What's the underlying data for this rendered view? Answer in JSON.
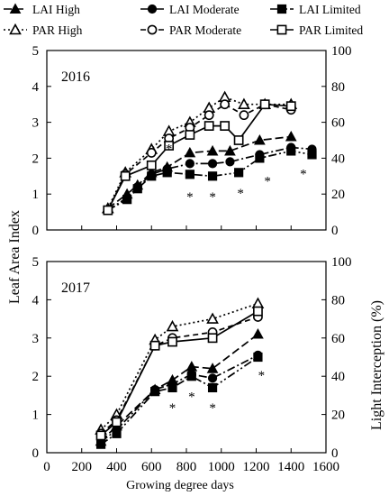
{
  "chart_data": {
    "type": "line",
    "xlabel": "Growing degree days",
    "ylabel_left": "Leaf Area Index",
    "ylabel_right": "Light Interception (%)",
    "xlim": [
      0,
      1600
    ],
    "x_ticks": [
      "0",
      "200",
      "400",
      "600",
      "800",
      "1000",
      "1200",
      "1400",
      "1600"
    ],
    "ylim_left": [
      0,
      5
    ],
    "y_ticks_left": [
      "0",
      "1",
      "2",
      "3",
      "4",
      "5"
    ],
    "ylim_right": [
      0,
      100
    ],
    "y_ticks_right": [
      "0",
      "20",
      "40",
      "60",
      "80",
      "100"
    ],
    "legend": [
      {
        "name": "LAI High",
        "marker": "triangle",
        "filled": true,
        "dash": "long"
      },
      {
        "name": "LAI Moderate",
        "marker": "circle",
        "filled": true,
        "dash": "dashdot"
      },
      {
        "name": "LAI Limited",
        "marker": "square",
        "filled": true,
        "dash": "dashdotdot"
      },
      {
        "name": "PAR High",
        "marker": "triangle",
        "filled": false,
        "dash": "dot"
      },
      {
        "name": "PAR Moderate",
        "marker": "circle",
        "filled": false,
        "dash": "dash"
      },
      {
        "name": "PAR Limited",
        "marker": "square",
        "filled": false,
        "dash": "solid"
      }
    ],
    "panels": [
      {
        "year": "2016",
        "series": [
          {
            "name": "LAI High",
            "axis": "left",
            "x": [
              350,
              460,
              520,
              600,
              690,
              820,
              950,
              1050,
              1220,
              1400
            ],
            "y": [
              0.6,
              1.0,
              1.25,
              1.6,
              1.75,
              2.15,
              2.2,
              2.2,
              2.5,
              2.6
            ]
          },
          {
            "name": "LAI Moderate",
            "axis": "left",
            "x": [
              350,
              460,
              520,
              600,
              690,
              820,
              950,
              1050,
              1220,
              1400,
              1520
            ],
            "y": [
              0.55,
              0.9,
              1.2,
              1.55,
              1.7,
              1.85,
              1.85,
              1.9,
              2.1,
              2.3,
              2.25
            ]
          },
          {
            "name": "LAI Limited",
            "axis": "left",
            "x": [
              350,
              460,
              520,
              600,
              690,
              820,
              950,
              1100,
              1220,
              1400,
              1520
            ],
            "y": [
              0.55,
              0.85,
              1.15,
              1.5,
              1.6,
              1.55,
              1.5,
              1.6,
              2.0,
              2.2,
              2.1
            ]
          },
          {
            "name": "PAR High",
            "axis": "right",
            "x": [
              350,
              450,
              600,
              700,
              820,
              930,
              1020,
              1130,
              1250,
              1400
            ],
            "y": [
              12,
              32,
              45,
              55,
              60,
              68,
              74,
              70,
              70,
              70
            ]
          },
          {
            "name": "PAR Moderate",
            "axis": "right",
            "x": [
              350,
              450,
              600,
              700,
              820,
              930,
              1020,
              1130,
              1250,
              1400
            ],
            "y": [
              11,
              31,
              43,
              51,
              57,
              64,
              70,
              64,
              70,
              67
            ]
          },
          {
            "name": "PAR Limited",
            "axis": "right",
            "x": [
              350,
              450,
              600,
              700,
              820,
              930,
              1020,
              1100,
              1250,
              1400
            ],
            "y": [
              11,
              30,
              36,
              47,
              53,
              58,
              58,
              50,
              70,
              69
            ]
          }
        ],
        "annotations": [
          {
            "text": "*",
            "x": 700,
            "y": 2.3
          },
          {
            "text": "*",
            "x": 820,
            "y": 0.95
          },
          {
            "text": "*",
            "x": 950,
            "y": 0.95
          },
          {
            "text": "*",
            "x": 1110,
            "y": 1.05
          },
          {
            "text": "*",
            "x": 1265,
            "y": 1.4
          },
          {
            "text": "*",
            "x": 1470,
            "y": 1.6
          }
        ]
      },
      {
        "year": "2017",
        "series": [
          {
            "name": "LAI High",
            "axis": "left",
            "x": [
              310,
              400,
              620,
              720,
              830,
              950,
              1210
            ],
            "y": [
              0.3,
              0.7,
              1.65,
              1.9,
              2.25,
              2.2,
              3.1
            ]
          },
          {
            "name": "LAI Moderate",
            "axis": "left",
            "x": [
              310,
              400,
              620,
              720,
              830,
              950,
              1210
            ],
            "y": [
              0.28,
              0.6,
              1.65,
              1.8,
              2.05,
              1.95,
              2.55
            ]
          },
          {
            "name": "LAI Limited",
            "axis": "left",
            "x": [
              310,
              400,
              620,
              720,
              830,
              950,
              1210
            ],
            "y": [
              0.22,
              0.5,
              1.6,
              1.7,
              2.0,
              1.7,
              2.5
            ]
          },
          {
            "name": "PAR High",
            "axis": "right",
            "x": [
              310,
              400,
              620,
              720,
              950,
              1210
            ],
            "y": [
              12,
              20,
              59,
              66,
              70,
              78
            ]
          },
          {
            "name": "PAR Moderate",
            "axis": "right",
            "x": [
              310,
              400,
              620,
              720,
              950,
              1210
            ],
            "y": [
              10,
              17,
              56,
              60,
              63,
              71
            ]
          },
          {
            "name": "PAR Limited",
            "axis": "right",
            "x": [
              310,
              400,
              620,
              720,
              950,
              1210
            ],
            "y": [
              9,
              16,
              56,
              58,
              60,
              74
            ]
          }
        ],
        "annotations": [
          {
            "text": "*",
            "x": 720,
            "y": 1.2
          },
          {
            "text": "*",
            "x": 830,
            "y": 1.5
          },
          {
            "text": "*",
            "x": 950,
            "y": 1.2
          },
          {
            "text": "*",
            "x": 1230,
            "y": 2.05
          }
        ]
      }
    ]
  }
}
